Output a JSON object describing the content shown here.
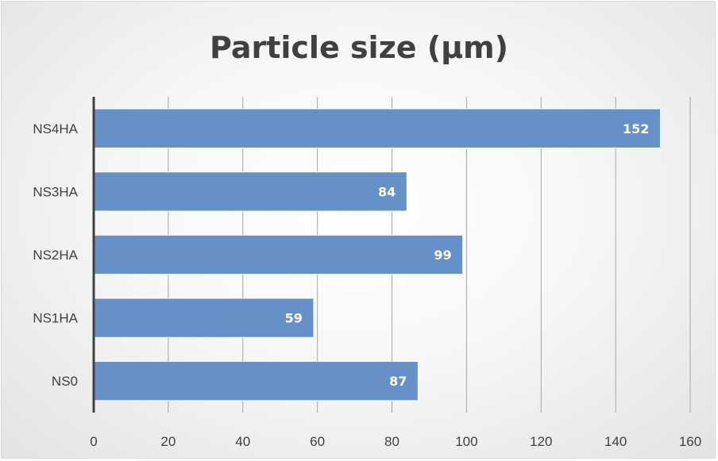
{
  "chart_data": {
    "type": "bar",
    "orientation": "horizontal",
    "title": "Particle size (µm)",
    "xlabel": "",
    "ylabel": "",
    "categories": [
      "NS0",
      "NS1HA",
      "NS2HA",
      "NS3HA",
      "NS4HA"
    ],
    "values": [
      87,
      59,
      99,
      84,
      152
    ],
    "xlim": [
      0,
      160
    ],
    "xticks": [
      0,
      20,
      40,
      60,
      80,
      100,
      120,
      140,
      160
    ],
    "grid": true,
    "legend": "none",
    "data_labels": true,
    "bar_color": "#6590c8",
    "bar_border_color": "#ffffff"
  }
}
